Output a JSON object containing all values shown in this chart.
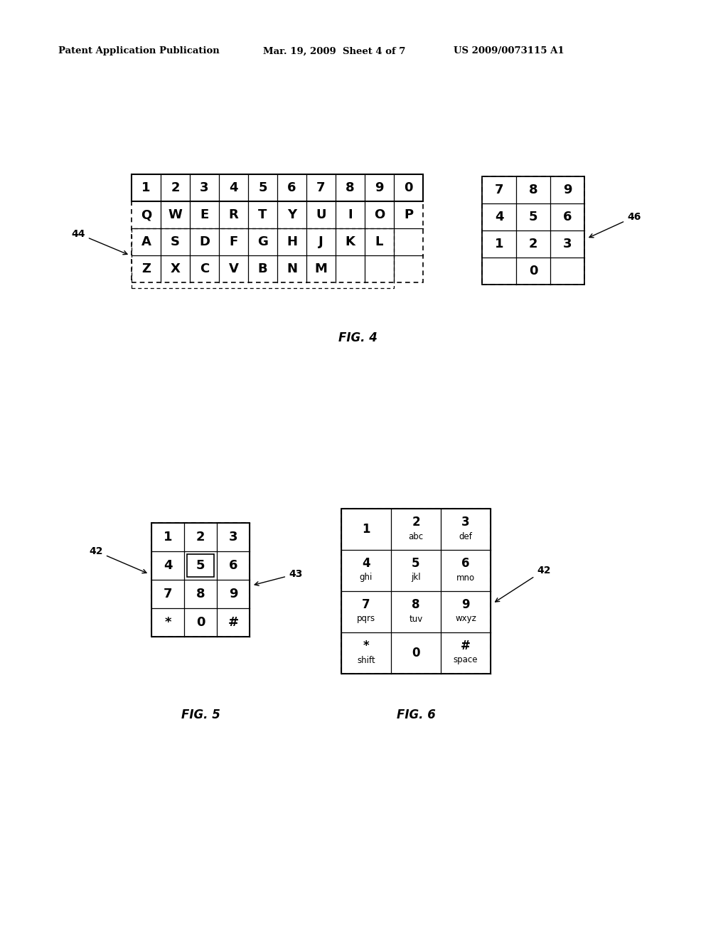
{
  "bg_color": "#ffffff",
  "header_left": "Patent Application Publication",
  "header_mid": "Mar. 19, 2009  Sheet 4 of 7",
  "header_right": "US 2009/0073115 A1",
  "fig4_title": "FIG. 4",
  "fig5_title": "FIG. 5",
  "fig6_title": "FIG. 6",
  "qwerty_row1": [
    "1",
    "2",
    "3",
    "4",
    "5",
    "6",
    "7",
    "8",
    "9",
    "0"
  ],
  "qwerty_row2": [
    "Q",
    "W",
    "E",
    "R",
    "T",
    "Y",
    "U",
    "I",
    "O",
    "P"
  ],
  "qwerty_row3": [
    "A",
    "S",
    "D",
    "F",
    "G",
    "H",
    "J",
    "K",
    "L",
    ""
  ],
  "qwerty_row4": [
    "Z",
    "X",
    "C",
    "V",
    "B",
    "N",
    "M",
    "",
    "",
    ""
  ],
  "numpad46_rows": [
    [
      "7",
      "8",
      "9"
    ],
    [
      "4",
      "5",
      "6"
    ],
    [
      "1",
      "2",
      "3"
    ],
    [
      "",
      "0",
      ""
    ]
  ],
  "numpad5_rows": [
    [
      "1",
      "2",
      "3"
    ],
    [
      "4",
      "5",
      "6"
    ],
    [
      "7",
      "8",
      "9"
    ],
    [
      "*",
      "0",
      "#"
    ]
  ],
  "numpad6_data": [
    [
      [
        "1",
        ""
      ],
      [
        "2",
        "abc"
      ],
      [
        "3",
        "def"
      ]
    ],
    [
      [
        "4",
        "ghi"
      ],
      [
        "5",
        "jkl"
      ],
      [
        "6",
        "mno"
      ]
    ],
    [
      [
        "7",
        "pqrs"
      ],
      [
        "8",
        "tuv"
      ],
      [
        "9",
        "wxyz"
      ]
    ],
    [
      [
        "*",
        "shift"
      ],
      [
        "0",
        ""
      ],
      [
        "#",
        "space"
      ]
    ]
  ]
}
